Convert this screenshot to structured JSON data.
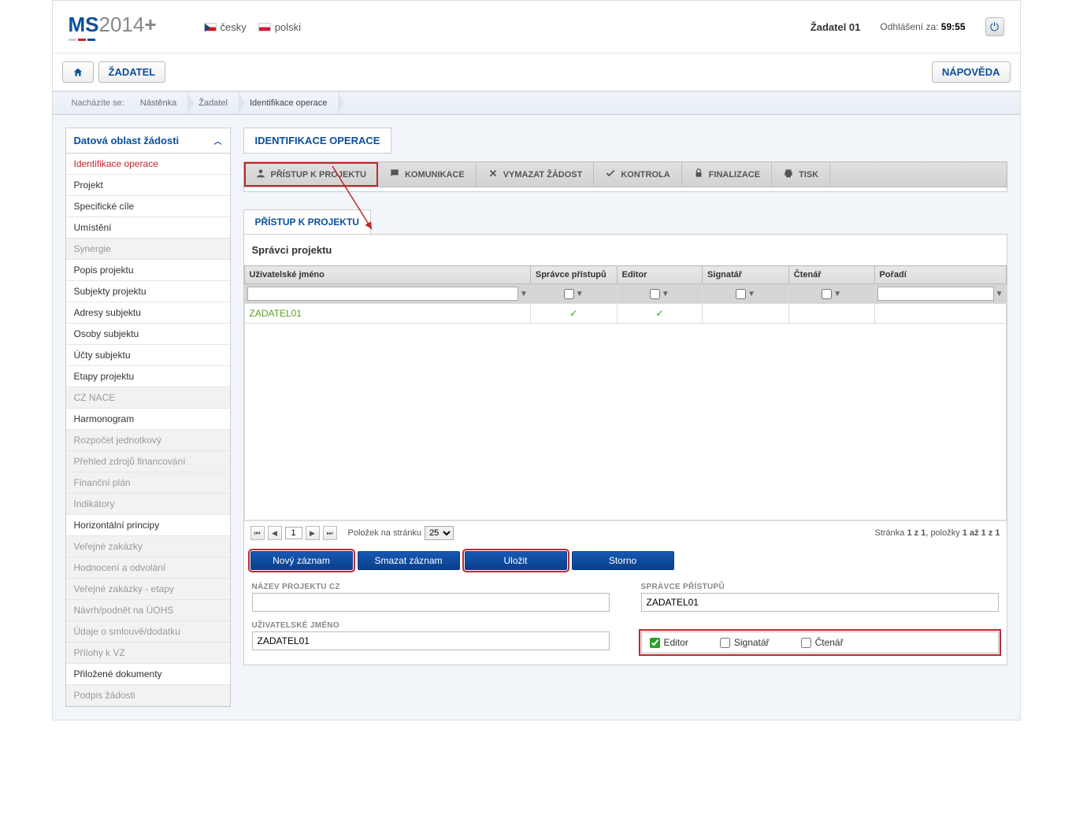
{
  "header": {
    "logo_prefix": "MS",
    "logo_year": "2014",
    "logo_plus": "+",
    "langs": [
      {
        "label": "česky",
        "flag": "cz"
      },
      {
        "label": "polski",
        "flag": "pl"
      }
    ],
    "user": "Žadatel 01",
    "logout_label": "Odhlášení za:",
    "logout_time": "59:55"
  },
  "toolbar": {
    "home": "",
    "zadatel": "ŽADATEL",
    "help": "NÁPOVĚDA"
  },
  "breadcrumb": {
    "label": "Nacházíte se:",
    "items": [
      "Nástěnka",
      "Žadatel",
      "Identifikace operace"
    ]
  },
  "sidebar": {
    "title": "Datová oblast žádosti",
    "items": [
      {
        "label": "Identifikace operace",
        "state": "active"
      },
      {
        "label": "Projekt",
        "state": "normal"
      },
      {
        "label": "Specifické cíle",
        "state": "normal"
      },
      {
        "label": "Umístění",
        "state": "normal"
      },
      {
        "label": "Synergie",
        "state": "disabled"
      },
      {
        "label": "Popis projektu",
        "state": "normal"
      },
      {
        "label": "Subjekty projektu",
        "state": "normal"
      },
      {
        "label": "Adresy subjektu",
        "state": "normal"
      },
      {
        "label": "Osoby subjektu",
        "state": "normal"
      },
      {
        "label": "Účty subjektu",
        "state": "normal"
      },
      {
        "label": "Etapy projektu",
        "state": "normal"
      },
      {
        "label": "CZ NACE",
        "state": "disabled"
      },
      {
        "label": "Harmonogram",
        "state": "normal"
      },
      {
        "label": "Rozpočet jednotkový",
        "state": "disabled"
      },
      {
        "label": "Přehled zdrojů financování",
        "state": "disabled"
      },
      {
        "label": "Finanční plán",
        "state": "disabled"
      },
      {
        "label": "Indikátory",
        "state": "disabled"
      },
      {
        "label": "Horizontální principy",
        "state": "normal"
      },
      {
        "label": "Veřejné zakázky",
        "state": "disabled"
      },
      {
        "label": "Hodnocení a odvolání",
        "state": "disabled"
      },
      {
        "label": "Veřejné zakázky - etapy",
        "state": "disabled"
      },
      {
        "label": "Návrh/podnět na ÚOHS",
        "state": "disabled"
      },
      {
        "label": "Údaje o smlouvě/dodatku",
        "state": "disabled"
      },
      {
        "label": "Přílohy k VZ",
        "state": "disabled"
      },
      {
        "label": "Přiložené dokumenty",
        "state": "normal"
      },
      {
        "label": "Podpis žádosti",
        "state": "disabled"
      }
    ]
  },
  "section_tab": "IDENTIFIKACE OPERACE",
  "actions": [
    {
      "label": "PŘÍSTUP K PROJEKTU",
      "icon": "users",
      "highlight": true
    },
    {
      "label": "KOMUNIKACE",
      "icon": "chat",
      "highlight": false
    },
    {
      "label": "VYMAZAT ŽÁDOST",
      "icon": "delete",
      "highlight": false
    },
    {
      "label": "KONTROLA",
      "icon": "check",
      "highlight": false
    },
    {
      "label": "FINALIZACE",
      "icon": "lock",
      "highlight": false
    },
    {
      "label": "TISK",
      "icon": "print",
      "highlight": false
    }
  ],
  "sub_tab": "PŘÍSTUP K PROJEKTU",
  "panel_title": "Správci projektu",
  "table": {
    "columns": [
      "Uživatelské jméno",
      "Správce přístupů",
      "Editor",
      "Signatář",
      "Čtenář",
      "Pořadí"
    ],
    "rows": [
      {
        "user": "ZADATEL01",
        "spravce": true,
        "editor": true,
        "signatar": false,
        "ctenar": false,
        "poradi": ""
      }
    ]
  },
  "pager": {
    "page": "1",
    "per_page_label": "Položek na stránku",
    "per_page": "25",
    "info_prefix": "Stránka ",
    "info_page": "1 z 1",
    "info_mid": ", položky ",
    "info_items": "1 až 1 z 1"
  },
  "buttons": {
    "new": "Nový záznam",
    "delete": "Smazat záznam",
    "save": "Uložit",
    "cancel": "Storno"
  },
  "form": {
    "project_name_label": "NÁZEV PROJEKTU CZ",
    "project_name_value": "",
    "spravce_label": "SPRÁVCE PŘÍSTUPŮ",
    "spravce_value": "ZADATEL01",
    "username_label": "UŽIVATELSKÉ JMÉNO",
    "username_value": "ZADATEL01",
    "roles": [
      {
        "label": "Editor",
        "checked": true
      },
      {
        "label": "Signatář",
        "checked": false
      },
      {
        "label": "Čtenář",
        "checked": false
      }
    ]
  },
  "colors": {
    "primary": "#0b4f9c",
    "highlight": "#c1272d",
    "btn_bg": "#1659b5",
    "success": "#2a9d2a"
  }
}
